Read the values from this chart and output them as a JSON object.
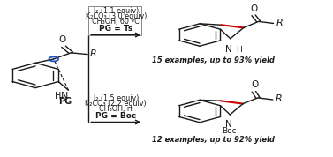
{
  "bg_color": "#ffffff",
  "line_color": "#1a1a1a",
  "red_color": "#cc0000",
  "blue_color": "#2255bb",
  "figsize": [
    3.77,
    1.78
  ],
  "dpi": 100,
  "condition1_lines": [
    "I₂ (1.1 equiv)",
    "K₂CO₃ (3.0 equiv)",
    "CH₃OH, 60 ºC",
    "PG = Ts"
  ],
  "condition2_lines": [
    "I₂ (1.5 equiv)",
    "K₂CO₃ (2.2 equiv)",
    "CH₃OH, rt",
    "PG = Boc"
  ],
  "result1": "15 examples, up to 93% yield",
  "result2": "12 examples, up to 92% yield"
}
